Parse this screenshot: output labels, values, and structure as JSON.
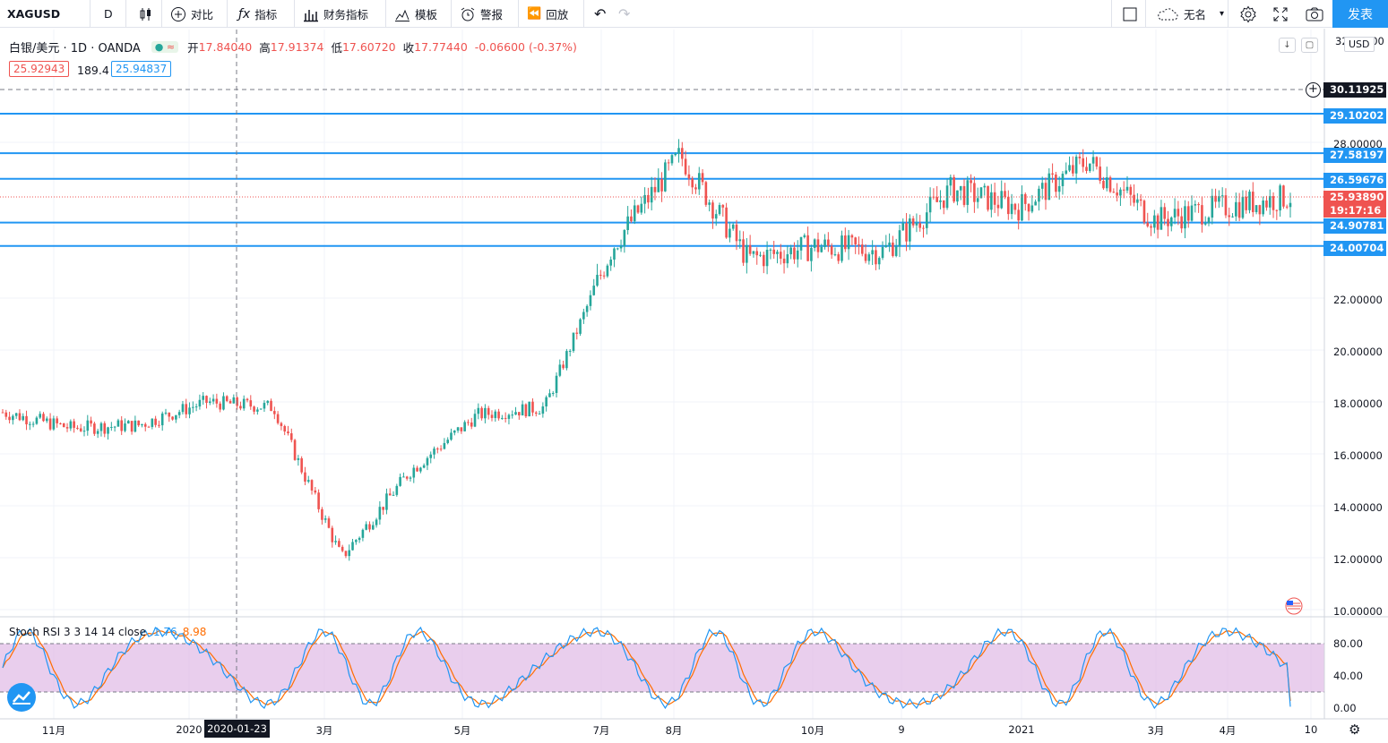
{
  "toolbar": {
    "symbol": "XAGUSD",
    "interval": "D",
    "compare": "对比",
    "indicators": "指标",
    "financials": "财务指标",
    "templates": "模板",
    "alert": "警报",
    "replay": "回放",
    "layout_name": "无名",
    "publish": "发表"
  },
  "legend": {
    "title": "白银/美元 · 1D · OANDA",
    "open_label": "开",
    "open": "17.84040",
    "high_label": "高",
    "high": "17.91374",
    "low_label": "低",
    "low": "17.60720",
    "close_label": "收",
    "close": "17.77440",
    "change": "-0.06600 (-0.37%)",
    "bid": "25.92943",
    "spread": "189.4",
    "ask": "25.94837"
  },
  "currency": "USD",
  "price_axis": [
    "32.00000",
    "28.00000",
    "22.00000",
    "20.00000",
    "18.00000",
    "16.00000",
    "14.00000",
    "12.00000",
    "10.00000"
  ],
  "price_labels": [
    {
      "value": "30.11925",
      "price": 30.12,
      "kind": "crosshair"
    },
    {
      "value": "29.10202",
      "price": 29.1,
      "kind": "level"
    },
    {
      "value": "27.58197",
      "price": 27.58,
      "kind": "level"
    },
    {
      "value": "26.59676",
      "price": 26.6,
      "kind": "level"
    },
    {
      "value": "25.93890",
      "price": 25.94,
      "kind": "last"
    },
    {
      "value": "24.90781",
      "price": 24.91,
      "kind": "level"
    },
    {
      "value": "24.00704",
      "price": 24.01,
      "kind": "level"
    }
  ],
  "countdown": "19:17:16",
  "time_axis": [
    "11月",
    "2020",
    "3月",
    "5月",
    "7月",
    "8月",
    "10月",
    "9",
    "2021",
    "3月",
    "4月",
    "10"
  ],
  "crosshair_date": "2020-01-23",
  "stoch_rsi": {
    "label": "Stoch RSI 3 3 14 14 close",
    "k": "1.76",
    "d": "8.98",
    "axis": [
      "80.00",
      "40.00",
      "0.00"
    ],
    "k_color": "#2196f3",
    "d_color": "#ff6d00",
    "band_color": "#e1bee7"
  },
  "colors": {
    "up": "#26a69a",
    "down": "#ef5350",
    "level": "#2196f3",
    "accent": "#2196f3"
  },
  "chart_data": {
    "type": "candlestick",
    "symbol": "XAGUSD",
    "price_lines": [
      29.10202,
      27.58197,
      26.59676,
      24.90781,
      24.00704
    ],
    "close_path": [
      {
        "x": "2019-10",
        "y": 17.6
      },
      {
        "x": "2019-11",
        "y": 17.0
      },
      {
        "x": "2019-12",
        "y": 17.1
      },
      {
        "x": "2020-01",
        "y": 18.0
      },
      {
        "x": "2020-02",
        "y": 17.8
      },
      {
        "x": "2020-03",
        "y": 12.0
      },
      {
        "x": "2020-04",
        "y": 15.3
      },
      {
        "x": "2020-05",
        "y": 17.5
      },
      {
        "x": "2020-06",
        "y": 17.8
      },
      {
        "x": "2020-07",
        "y": 24.0
      },
      {
        "x": "2020-08",
        "y": 27.5
      },
      {
        "x": "2020-09",
        "y": 23.5
      },
      {
        "x": "2020-10",
        "y": 24.0
      },
      {
        "x": "2020-11",
        "y": 23.8
      },
      {
        "x": "2020-12",
        "y": 26.2
      },
      {
        "x": "2021-01",
        "y": 25.5
      },
      {
        "x": "2021-02",
        "y": 27.3
      },
      {
        "x": "2021-03",
        "y": 25.0
      },
      {
        "x": "2021-04",
        "y": 25.5
      },
      {
        "x": "2021-05",
        "y": 25.9
      }
    ]
  }
}
